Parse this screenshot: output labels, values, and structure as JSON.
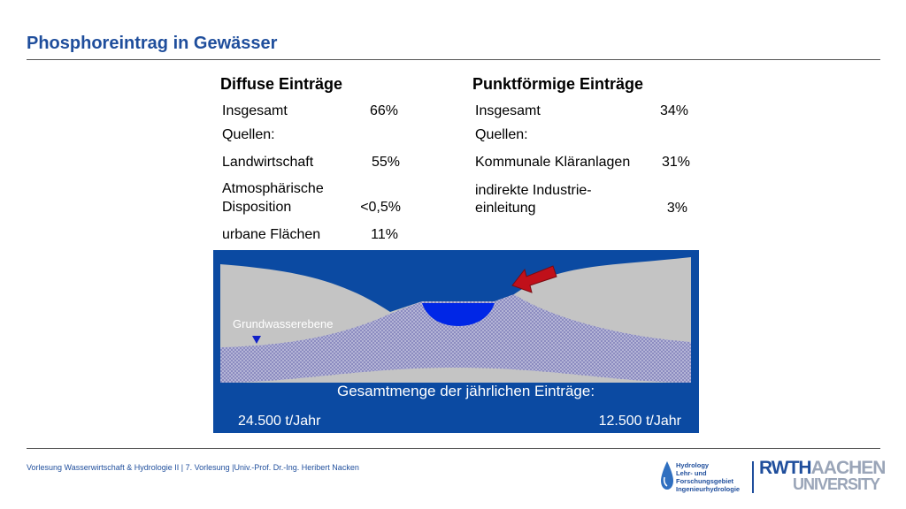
{
  "title": "Phosphoreintrag in Gewässer",
  "diffuse": {
    "heading": "Diffuse Einträge",
    "total_label": "Insgesamt",
    "total_value": "66%",
    "sources_label": "Quellen:",
    "items": [
      {
        "label_line1": "Landwirtschaft",
        "label_line2": "",
        "value": "55%"
      },
      {
        "label_line1": "Atmosphärische",
        "label_line2": "Disposition",
        "value": "<0,5%"
      },
      {
        "label_line1": "urbane Flächen",
        "label_line2": "",
        "value": "11%"
      }
    ]
  },
  "point": {
    "heading": "Punktförmige Einträge",
    "total_label": "Insgesamt",
    "total_value": "34%",
    "sources_label": "Quellen:",
    "items": [
      {
        "label_line1": "Kommunale Kläranlagen",
        "label_line2": "",
        "value": "31%"
      },
      {
        "label_line1": "indirekte Industrie-",
        "label_line2": "einleitung",
        "value": "3%"
      }
    ]
  },
  "diagram": {
    "groundwater_label": "Grundwasserebene",
    "total_caption": "Gesamtmenge der jährlichen Einträge:",
    "diffuse_amount": "24.500 t/Jahr",
    "point_amount": "12.500 t/Jahr",
    "colors": {
      "background": "#0b4aa2",
      "soil": "#c4c4c4",
      "groundwater": "#a9a9cf",
      "water": "#0022e0",
      "arrow": "#c0101a"
    }
  },
  "footer": {
    "text": "Vorlesung Wasserwirtschaft & Hydrologie II | 7. Vorlesung |Univ.-Prof. Dr.-Ing. Heribert Nacken"
  },
  "logos": {
    "hydrology_lines": [
      "Hydrology",
      "Lehr- und",
      "Forschungsgebiet",
      "Ingenieurhydrologie"
    ],
    "rwth_line1_a": "RWTH",
    "rwth_line1_b": "AACHEN",
    "rwth_line2": "UNIVERSITY",
    "drop_icon": "water-drop-icon"
  }
}
